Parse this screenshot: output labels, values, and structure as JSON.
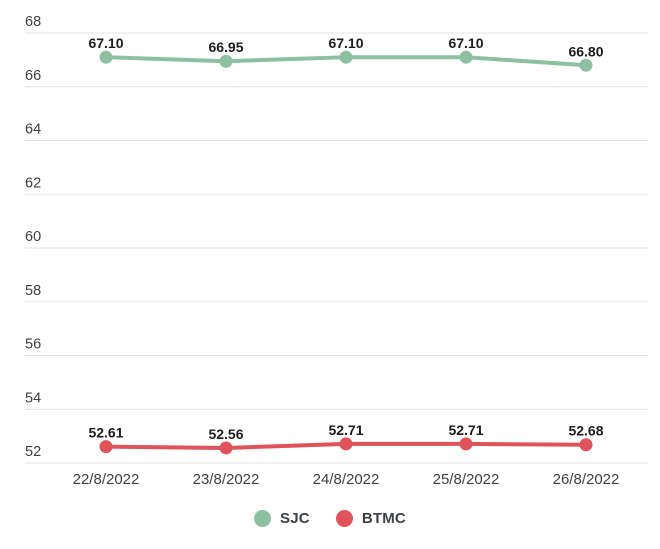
{
  "chart_data": {
    "type": "line",
    "title": "",
    "xlabel": "",
    "ylabel": "",
    "categories": [
      "22/8/2022",
      "23/8/2022",
      "24/8/2022",
      "25/8/2022",
      "26/8/2022"
    ],
    "series": [
      {
        "name": "SJC",
        "color": "#8CC0A0",
        "values": [
          67.1,
          66.95,
          67.1,
          67.1,
          66.8
        ]
      },
      {
        "name": "BTMC",
        "color": "#E0535A",
        "values": [
          52.61,
          52.56,
          52.71,
          52.71,
          52.68
        ]
      }
    ],
    "point_label_decimals": 2,
    "ylim": [
      52,
      68
    ],
    "yticks": [
      52,
      54,
      56,
      58,
      60,
      62,
      64,
      66,
      68
    ],
    "grid": true,
    "legend_position": "bottom"
  },
  "colors": {
    "background": "#ffffff",
    "gridline": "#e3e3e3",
    "axis_text": "#3f3f3f",
    "point_label_text": "#1c1c1c",
    "legend_text": "#3c4043"
  }
}
